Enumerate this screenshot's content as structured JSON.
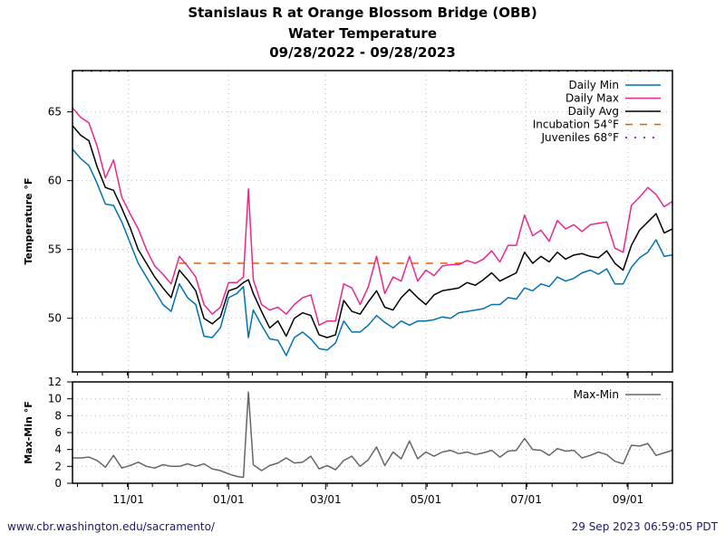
{
  "header": {
    "title_line1": "Stanislaus R at Orange Blossom Bridge (OBB)",
    "title_line2": "Water Temperature",
    "title_line3": "09/28/2022 - 09/28/2023"
  },
  "footer": {
    "source_url_text": "www.cbr.washington.edu/sacramento/",
    "generated_timestamp": "29 Sep 2023 06:59:05 PDT"
  },
  "colors": {
    "daily_min": "#0072b2",
    "daily_max": "#e7298a",
    "daily_avg": "#000000",
    "incubation": "#e66101",
    "juveniles": "#9b30d9",
    "max_min": "#666666",
    "grid": "#bbbbbb"
  },
  "chart_data": [
    {
      "type": "line",
      "title": "Water Temperature",
      "xlabel": "",
      "ylabel": "Temperature °F",
      "x_start": "09/28/2022",
      "x_end": "09/28/2023",
      "x_total_days": 365,
      "ylim": [
        46.1,
        68.0
      ],
      "yticks": [
        50,
        55,
        60,
        65
      ],
      "xticks": [
        {
          "label": "11/01",
          "day": 34
        },
        {
          "label": "01/01",
          "day": 95
        },
        {
          "label": "03/01",
          "day": 154
        },
        {
          "label": "05/01",
          "day": 215
        },
        {
          "label": "07/01",
          "day": 276
        },
        {
          "label": "09/01",
          "day": 338
        }
      ],
      "grid": true,
      "legend_position": "top-right",
      "x_days": [
        0,
        5,
        10,
        15,
        20,
        25,
        30,
        35,
        40,
        45,
        50,
        55,
        60,
        65,
        70,
        75,
        80,
        85,
        90,
        95,
        100,
        104,
        107,
        110,
        115,
        120,
        125,
        130,
        135,
        140,
        145,
        150,
        155,
        160,
        165,
        170,
        175,
        180,
        185,
        190,
        195,
        200,
        205,
        210,
        215,
        220,
        225,
        230,
        235,
        240,
        245,
        250,
        255,
        260,
        265,
        270,
        275,
        280,
        285,
        290,
        295,
        300,
        305,
        310,
        315,
        320,
        325,
        330,
        335,
        340,
        345,
        350,
        355,
        360,
        365
      ],
      "series": [
        {
          "name": "Daily Min",
          "style": "solid",
          "values": [
            62.3,
            61.6,
            61.1,
            59.8,
            58.3,
            58.2,
            57.0,
            55.5,
            54.0,
            53.0,
            52.0,
            51.0,
            50.5,
            52.5,
            51.5,
            51.0,
            48.7,
            48.6,
            49.3,
            51.5,
            51.8,
            52.3,
            48.6,
            50.6,
            49.5,
            48.5,
            48.4,
            47.3,
            48.6,
            49.0,
            48.5,
            47.8,
            47.7,
            48.2,
            49.8,
            49.0,
            49.0,
            49.5,
            50.2,
            49.7,
            49.3,
            49.8,
            49.5,
            49.8,
            49.8,
            49.9,
            50.1,
            50.0,
            50.4,
            50.5,
            50.6,
            50.7,
            51.0,
            51.0,
            51.5,
            51.4,
            52.2,
            52.0,
            52.5,
            52.3,
            53.0,
            52.7,
            52.9,
            53.3,
            53.5,
            53.2,
            53.6,
            52.5,
            52.5,
            53.7,
            54.4,
            54.8,
            55.7,
            54.5,
            54.6
          ]
        },
        {
          "name": "Daily Max",
          "style": "solid",
          "values": [
            65.3,
            64.6,
            64.2,
            62.5,
            60.2,
            61.5,
            58.8,
            57.6,
            56.5,
            55.0,
            53.8,
            53.2,
            52.5,
            54.5,
            53.8,
            53.0,
            51.0,
            50.3,
            50.8,
            52.6,
            52.6,
            53.0,
            59.4,
            52.8,
            51.0,
            50.6,
            50.8,
            50.3,
            51.0,
            51.5,
            51.7,
            49.5,
            49.8,
            49.8,
            52.5,
            52.2,
            51.0,
            52.3,
            54.5,
            51.8,
            53.0,
            52.7,
            54.5,
            52.7,
            53.5,
            53.1,
            53.8,
            53.9,
            53.9,
            54.2,
            54.0,
            54.3,
            54.9,
            54.1,
            55.3,
            55.3,
            57.5,
            56.0,
            56.4,
            55.6,
            57.1,
            56.5,
            56.8,
            56.3,
            56.8,
            56.9,
            57.0,
            55.1,
            54.8,
            58.2,
            58.8,
            59.5,
            59.0,
            58.1,
            58.5
          ]
        },
        {
          "name": "Daily Avg",
          "style": "solid",
          "values": [
            64.0,
            63.3,
            62.9,
            61.0,
            59.5,
            59.3,
            58.0,
            56.6,
            55.0,
            54.0,
            53.0,
            52.2,
            51.5,
            53.5,
            52.8,
            52.0,
            50.0,
            49.6,
            50.1,
            52.0,
            52.2,
            52.6,
            52.8,
            51.8,
            50.5,
            49.3,
            49.8,
            48.7,
            50.0,
            50.4,
            50.2,
            48.8,
            48.6,
            48.8,
            51.3,
            50.5,
            50.3,
            51.2,
            52.0,
            50.8,
            50.6,
            51.5,
            52.1,
            51.5,
            51.0,
            51.7,
            52.0,
            52.1,
            52.2,
            52.6,
            52.4,
            52.8,
            53.3,
            52.7,
            53.0,
            53.3,
            54.8,
            54.0,
            54.5,
            54.1,
            54.8,
            54.3,
            54.6,
            54.7,
            54.5,
            54.4,
            54.9,
            54.0,
            53.5,
            55.3,
            56.4,
            57.0,
            57.6,
            56.2,
            56.5
          ]
        },
        {
          "name": "Incubation 54°F",
          "style": "dashed",
          "value": 54,
          "from_day": 65,
          "to_day": 241
        },
        {
          "name": "Juveniles 68°F",
          "style": "dotted",
          "value": 68,
          "segments": [
            [
              0,
              35
            ],
            [
              229,
              365
            ]
          ]
        }
      ]
    },
    {
      "type": "line",
      "title": "",
      "xlabel": "",
      "ylabel": "Max-Min °F",
      "ylim": [
        0,
        12
      ],
      "yticks": [
        0,
        2,
        4,
        6,
        8,
        10,
        12
      ],
      "grid": true,
      "legend_position": "top-right",
      "series": [
        {
          "name": "Max-Min",
          "style": "solid",
          "derived_from": "Daily Max - Daily Min"
        }
      ]
    }
  ]
}
